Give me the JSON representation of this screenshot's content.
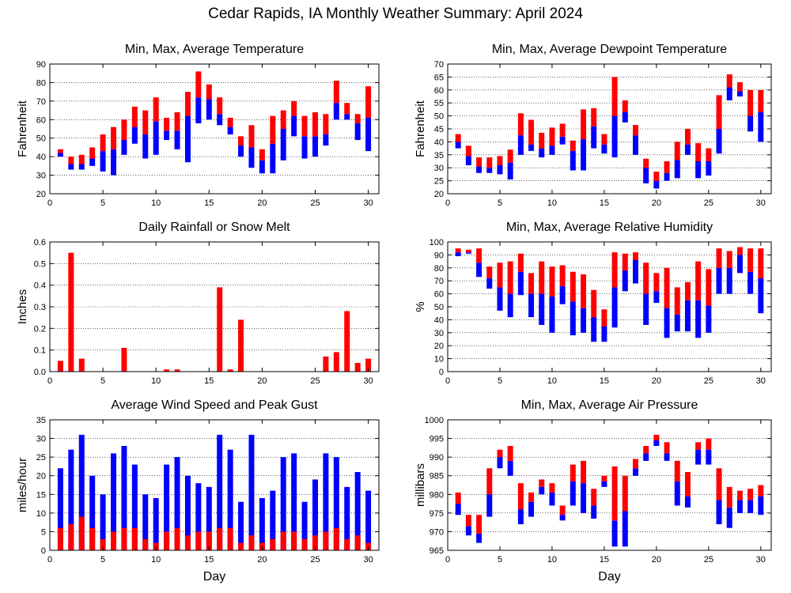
{
  "figure": {
    "title": "Cedar Rapids, IA Monthly Weather Summary: April 2024"
  },
  "chart_data": [
    {
      "type": "bar",
      "title": "Min, Max, Average Temperature",
      "xlabel": "",
      "ylabel": "Fahrenheit",
      "xlim": [
        0,
        31
      ],
      "ylim": [
        20,
        90
      ],
      "xticks": [
        0,
        5,
        10,
        15,
        20,
        25,
        30
      ],
      "yticks": [
        20,
        30,
        40,
        50,
        60,
        70,
        80,
        90
      ],
      "grid": true,
      "series": [
        {
          "color": "#ff0000",
          "role": "avg-to-max"
        },
        {
          "color": "#0000ff",
          "role": "min-to-avg"
        }
      ],
      "days": [
        1,
        2,
        3,
        4,
        5,
        6,
        7,
        8,
        9,
        10,
        11,
        12,
        13,
        14,
        15,
        16,
        17,
        18,
        19,
        20,
        21,
        22,
        23,
        24,
        25,
        26,
        27,
        28,
        29,
        30
      ],
      "min": [
        40,
        33,
        33,
        35,
        32,
        30,
        41,
        47,
        39,
        41,
        49,
        44,
        37,
        58,
        60,
        57,
        52,
        40,
        34,
        31,
        31,
        38,
        51,
        39,
        40,
        46,
        60,
        60,
        49,
        43
      ],
      "avg": [
        42,
        36,
        36,
        39,
        43,
        44,
        49,
        56,
        52,
        59,
        54,
        54,
        62,
        72,
        71,
        63,
        56,
        46,
        45,
        38,
        47,
        55,
        62,
        51,
        51,
        52,
        69,
        63,
        58,
        61
      ],
      "max": [
        44,
        40,
        41,
        45,
        52,
        56,
        60,
        67,
        65,
        72,
        61,
        64,
        75,
        86,
        79,
        72,
        61,
        51,
        57,
        44,
        62,
        65,
        70,
        62,
        64,
        63,
        81,
        69,
        63,
        78
      ]
    },
    {
      "type": "bar",
      "title": "Min, Max, Average Dewpoint Temperature",
      "xlabel": "",
      "ylabel": "Fahrenheit",
      "xlim": [
        0,
        31
      ],
      "ylim": [
        20,
        70
      ],
      "xticks": [
        0,
        5,
        10,
        15,
        20,
        25,
        30
      ],
      "yticks": [
        20,
        25,
        30,
        35,
        40,
        45,
        50,
        55,
        60,
        65,
        70
      ],
      "grid": true,
      "series": [
        {
          "color": "#ff0000",
          "role": "avg-to-max"
        },
        {
          "color": "#0000ff",
          "role": "min-to-avg"
        }
      ],
      "days": [
        1,
        2,
        3,
        4,
        5,
        6,
        7,
        8,
        9,
        10,
        11,
        12,
        13,
        14,
        15,
        16,
        17,
        18,
        19,
        20,
        21,
        22,
        23,
        24,
        25,
        26,
        27,
        28,
        29,
        30
      ],
      "min": [
        37.5,
        31,
        28,
        28,
        27.5,
        25.5,
        35,
        36.5,
        34,
        35,
        39,
        29,
        29,
        37.5,
        35.5,
        34,
        47.5,
        35,
        24,
        22,
        25,
        26,
        35,
        26,
        27,
        35.5,
        56,
        57.5,
        44,
        40
      ],
      "avg": [
        40,
        34.5,
        30.5,
        30,
        31,
        32,
        42.5,
        39,
        37.5,
        38.5,
        42,
        36.5,
        41,
        46,
        39,
        50,
        51.5,
        42.5,
        30,
        25,
        28,
        33,
        39,
        32.5,
        32.5,
        45,
        61,
        59.5,
        50,
        51.5
      ],
      "max": [
        43,
        38.5,
        34,
        34,
        34.5,
        37,
        51,
        48.5,
        43.5,
        45.5,
        47,
        40.5,
        52.5,
        53,
        43,
        65,
        56,
        46.5,
        33.5,
        28.5,
        32.5,
        40,
        45,
        39.5,
        37.5,
        58,
        66,
        63,
        60,
        60
      ]
    },
    {
      "type": "bar",
      "title": "Daily Rainfall or Snow Melt",
      "xlabel": "",
      "ylabel": "Inches",
      "xlim": [
        0,
        31
      ],
      "ylim": [
        0,
        0.6
      ],
      "xticks": [
        0,
        5,
        10,
        15,
        20,
        25,
        30
      ],
      "yticks": [
        "0.0",
        "0.1",
        "0.2",
        "0.3",
        "0.4",
        "0.5",
        "0.6"
      ],
      "grid": true,
      "series": [
        {
          "color": "#ff0000",
          "role": "precipitation"
        }
      ],
      "days": [
        1,
        2,
        3,
        4,
        5,
        6,
        7,
        8,
        9,
        10,
        11,
        12,
        13,
        14,
        15,
        16,
        17,
        18,
        19,
        20,
        21,
        22,
        23,
        24,
        25,
        26,
        27,
        28,
        29,
        30
      ],
      "values": [
        0.05,
        0.55,
        0.06,
        0,
        0,
        0,
        0.11,
        0,
        0,
        0,
        0.01,
        0.01,
        0,
        0,
        0,
        0.39,
        0.01,
        0.24,
        0,
        0,
        0,
        0,
        0,
        0,
        0,
        0.07,
        0.09,
        0.28,
        0.04,
        0.06
      ]
    },
    {
      "type": "bar",
      "title": "Min, Max, Average Relative Humidity",
      "xlabel": "",
      "ylabel": "%",
      "xlim": [
        0,
        31
      ],
      "ylim": [
        0,
        100
      ],
      "xticks": [
        0,
        5,
        10,
        15,
        20,
        25,
        30
      ],
      "yticks": [
        0,
        10,
        20,
        30,
        40,
        50,
        60,
        70,
        80,
        90,
        100
      ],
      "grid": true,
      "series": [
        {
          "color": "#ff0000",
          "role": "avg-to-max"
        },
        {
          "color": "#0000ff",
          "role": "min-to-avg"
        }
      ],
      "days": [
        1,
        2,
        3,
        4,
        5,
        6,
        7,
        8,
        9,
        10,
        11,
        12,
        13,
        14,
        15,
        16,
        17,
        18,
        19,
        20,
        21,
        22,
        23,
        24,
        25,
        26,
        27,
        28,
        29,
        30
      ],
      "min": [
        89,
        91,
        73,
        64,
        47,
        42,
        59,
        42,
        36,
        30,
        52,
        28,
        30,
        23,
        23,
        34,
        62,
        68,
        36,
        53,
        26,
        31,
        31,
        26,
        30,
        60,
        60,
        76,
        60,
        45
      ],
      "avg": [
        92,
        92,
        84,
        72,
        65,
        60,
        77,
        60,
        60,
        58,
        66,
        54,
        49,
        42,
        35,
        65,
        78,
        86,
        60,
        62,
        49,
        44,
        55,
        55,
        51,
        80,
        80,
        90,
        77,
        72
      ],
      "max": [
        95,
        94,
        95,
        81,
        84,
        85,
        91,
        76,
        85,
        81,
        82,
        77,
        75,
        63,
        48,
        92,
        91,
        92,
        84,
        76,
        80,
        65,
        69,
        85,
        79,
        95,
        93,
        96,
        95,
        95
      ]
    },
    {
      "type": "bar",
      "title": "Average Wind Speed and Peak Gust",
      "xlabel": "Day",
      "ylabel": "miles/hour",
      "xlim": [
        0,
        31
      ],
      "ylim": [
        0,
        35
      ],
      "xticks": [
        0,
        5,
        10,
        15,
        20,
        25,
        30
      ],
      "yticks": [
        0,
        5,
        10,
        15,
        20,
        25,
        30,
        35
      ],
      "grid": true,
      "series": [
        {
          "color": "#ff0000",
          "role": "average-speed"
        },
        {
          "color": "#0000ff",
          "role": "peak-gust"
        }
      ],
      "days": [
        1,
        2,
        3,
        4,
        5,
        6,
        7,
        8,
        9,
        10,
        11,
        12,
        13,
        14,
        15,
        16,
        17,
        18,
        19,
        20,
        21,
        22,
        23,
        24,
        25,
        26,
        27,
        28,
        29,
        30
      ],
      "avg_speed": [
        6,
        7,
        9,
        6,
        3,
        5,
        6,
        6,
        3,
        2,
        5,
        6,
        4,
        5,
        5,
        6,
        6,
        2,
        4,
        2,
        3,
        5,
        5,
        3,
        4,
        5,
        6,
        3,
        4,
        2
      ],
      "peak_gust": [
        22,
        27,
        31,
        20,
        15,
        26,
        28,
        23,
        15,
        14,
        23,
        25,
        20,
        18,
        17,
        31,
        27,
        13,
        31,
        14,
        16,
        25,
        26,
        13,
        19,
        26,
        25,
        17,
        21,
        16
      ]
    },
    {
      "type": "bar",
      "title": "Min, Max, Average Air Pressure",
      "xlabel": "Day",
      "ylabel": "millibars",
      "xlim": [
        0,
        31
      ],
      "ylim": [
        965,
        1000
      ],
      "xticks": [
        0,
        5,
        10,
        15,
        20,
        25,
        30
      ],
      "yticks": [
        965,
        970,
        975,
        980,
        985,
        990,
        995,
        1000
      ],
      "grid": true,
      "series": [
        {
          "color": "#ff0000",
          "role": "avg-to-max"
        },
        {
          "color": "#0000ff",
          "role": "min-to-avg"
        }
      ],
      "days": [
        1,
        2,
        3,
        4,
        5,
        6,
        7,
        8,
        9,
        10,
        11,
        12,
        13,
        14,
        15,
        16,
        17,
        18,
        19,
        20,
        21,
        22,
        23,
        24,
        25,
        26,
        27,
        28,
        29,
        30
      ],
      "min": [
        974.5,
        969,
        967,
        974,
        987,
        985,
        972,
        974,
        980,
        977,
        973,
        977,
        975,
        973.5,
        982,
        966,
        966,
        985,
        989,
        993,
        989,
        977,
        976.5,
        988,
        988,
        972,
        971,
        975,
        975,
        974.5
      ],
      "avg": [
        977.5,
        971.5,
        969.5,
        980,
        990,
        989,
        976,
        978,
        982,
        980.5,
        974.5,
        983.5,
        983,
        977,
        983.5,
        973,
        975.5,
        987,
        991,
        994.5,
        991,
        983.5,
        979.5,
        992,
        992,
        978.5,
        976.5,
        978.5,
        978.5,
        979.5
      ],
      "max": [
        980.5,
        974.5,
        974.5,
        987,
        992,
        993,
        983,
        980.5,
        984,
        983,
        977,
        988,
        989,
        981.5,
        985,
        987.5,
        985,
        989.5,
        993,
        996,
        994,
        989,
        986,
        994,
        995,
        987,
        982,
        981,
        981.5,
        982.5
      ]
    }
  ]
}
